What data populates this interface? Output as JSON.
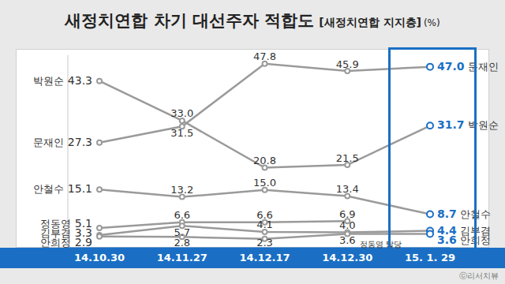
{
  "chart_data": {
    "type": "line",
    "title": "새정치연합 차기 대선주자 적합도",
    "subtitle": "[새정치연합 지지층]",
    "unit": "(%)",
    "categories": [
      "14.10.30",
      "14.11.27",
      "14.12.17",
      "14.12.30",
      "15. 1. 29"
    ],
    "series": [
      {
        "name": "문재인",
        "color": "#9a9a9a",
        "values": [
          27.3,
          31.5,
          47.8,
          45.9,
          47.0
        ],
        "value_labels": [
          "27.3",
          "31.5",
          "47.8",
          "45.9",
          "47.0"
        ]
      },
      {
        "name": "박원순",
        "color": "#9a9a9a",
        "values": [
          43.3,
          33.0,
          20.8,
          21.5,
          31.7
        ],
        "value_labels": [
          "43.3",
          "33.0",
          "20.8",
          "21.5",
          "31.7"
        ]
      },
      {
        "name": "안철수",
        "color": "#9a9a9a",
        "values": [
          15.1,
          13.2,
          15.0,
          13.4,
          8.7
        ],
        "value_labels": [
          "15.1",
          "13.2",
          "15.0",
          "13.4",
          "8.7"
        ]
      },
      {
        "name": "정동영",
        "color": "#9a9a9a",
        "values": [
          5.1,
          6.6,
          6.6,
          6.9,
          null
        ],
        "value_labels": [
          "5.1",
          "6.6",
          "6.6",
          "6.9",
          null
        ]
      },
      {
        "name": "김부겸",
        "color": "#9a9a9a",
        "values": [
          3.3,
          5.7,
          4.1,
          4.0,
          4.4
        ],
        "value_labels": [
          "3.3",
          "5.7",
          "4.1",
          "4.0",
          "4.4"
        ]
      },
      {
        "name": "안희정",
        "color": "#9a9a9a",
        "values": [
          2.9,
          2.8,
          2.3,
          3.6,
          3.6
        ],
        "value_labels": [
          "2.9",
          "2.8",
          "2.3",
          "3.6",
          "3.6"
        ]
      }
    ],
    "ylim": [
      0,
      50
    ],
    "data_labels": true,
    "tick_labels": "x",
    "grid": false,
    "annotation": "정동영 탈당",
    "source": "ⓒ리서치뷰"
  }
}
